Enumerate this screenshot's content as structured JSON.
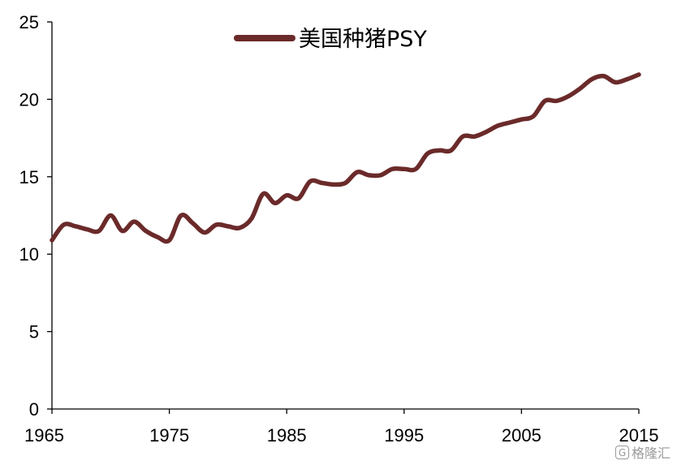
{
  "chart_data": {
    "type": "line",
    "title": "",
    "xlabel": "",
    "ylabel": "",
    "xlim": [
      1965,
      2015
    ],
    "ylim": [
      0,
      25
    ],
    "x_ticks": [
      "1965",
      "1975",
      "1985",
      "1995",
      "2005",
      "2015"
    ],
    "y_ticks": [
      "0",
      "5",
      "10",
      "15",
      "20",
      "25"
    ],
    "grid": false,
    "legend_position": "top-center",
    "series": [
      {
        "name": "美国种猪PSY",
        "color": "#6b2a2a",
        "x": [
          1965,
          1966,
          1967,
          1968,
          1969,
          1970,
          1971,
          1972,
          1973,
          1974,
          1975,
          1976,
          1977,
          1978,
          1979,
          1980,
          1981,
          1982,
          1983,
          1984,
          1985,
          1986,
          1987,
          1988,
          1989,
          1990,
          1991,
          1992,
          1993,
          1994,
          1995,
          1996,
          1997,
          1998,
          1999,
          2000,
          2001,
          2002,
          2003,
          2004,
          2005,
          2006,
          2007,
          2008,
          2009,
          2010,
          2011,
          2012,
          2013,
          2014,
          2015
        ],
        "y": [
          10.9,
          11.9,
          11.8,
          11.6,
          11.5,
          12.5,
          11.5,
          12.1,
          11.5,
          11.1,
          10.9,
          12.5,
          12.0,
          11.4,
          11.9,
          11.8,
          11.7,
          12.3,
          13.9,
          13.3,
          13.8,
          13.6,
          14.7,
          14.6,
          14.5,
          14.6,
          15.3,
          15.1,
          15.1,
          15.5,
          15.5,
          15.5,
          16.5,
          16.7,
          16.7,
          17.6,
          17.6,
          17.9,
          18.3,
          18.5,
          18.7,
          18.9,
          19.9,
          19.9,
          20.2,
          20.7,
          21.3,
          21.5,
          21.1,
          21.3,
          21.6
        ]
      }
    ]
  },
  "watermark": {
    "logo": "G",
    "text": "格隆汇"
  }
}
